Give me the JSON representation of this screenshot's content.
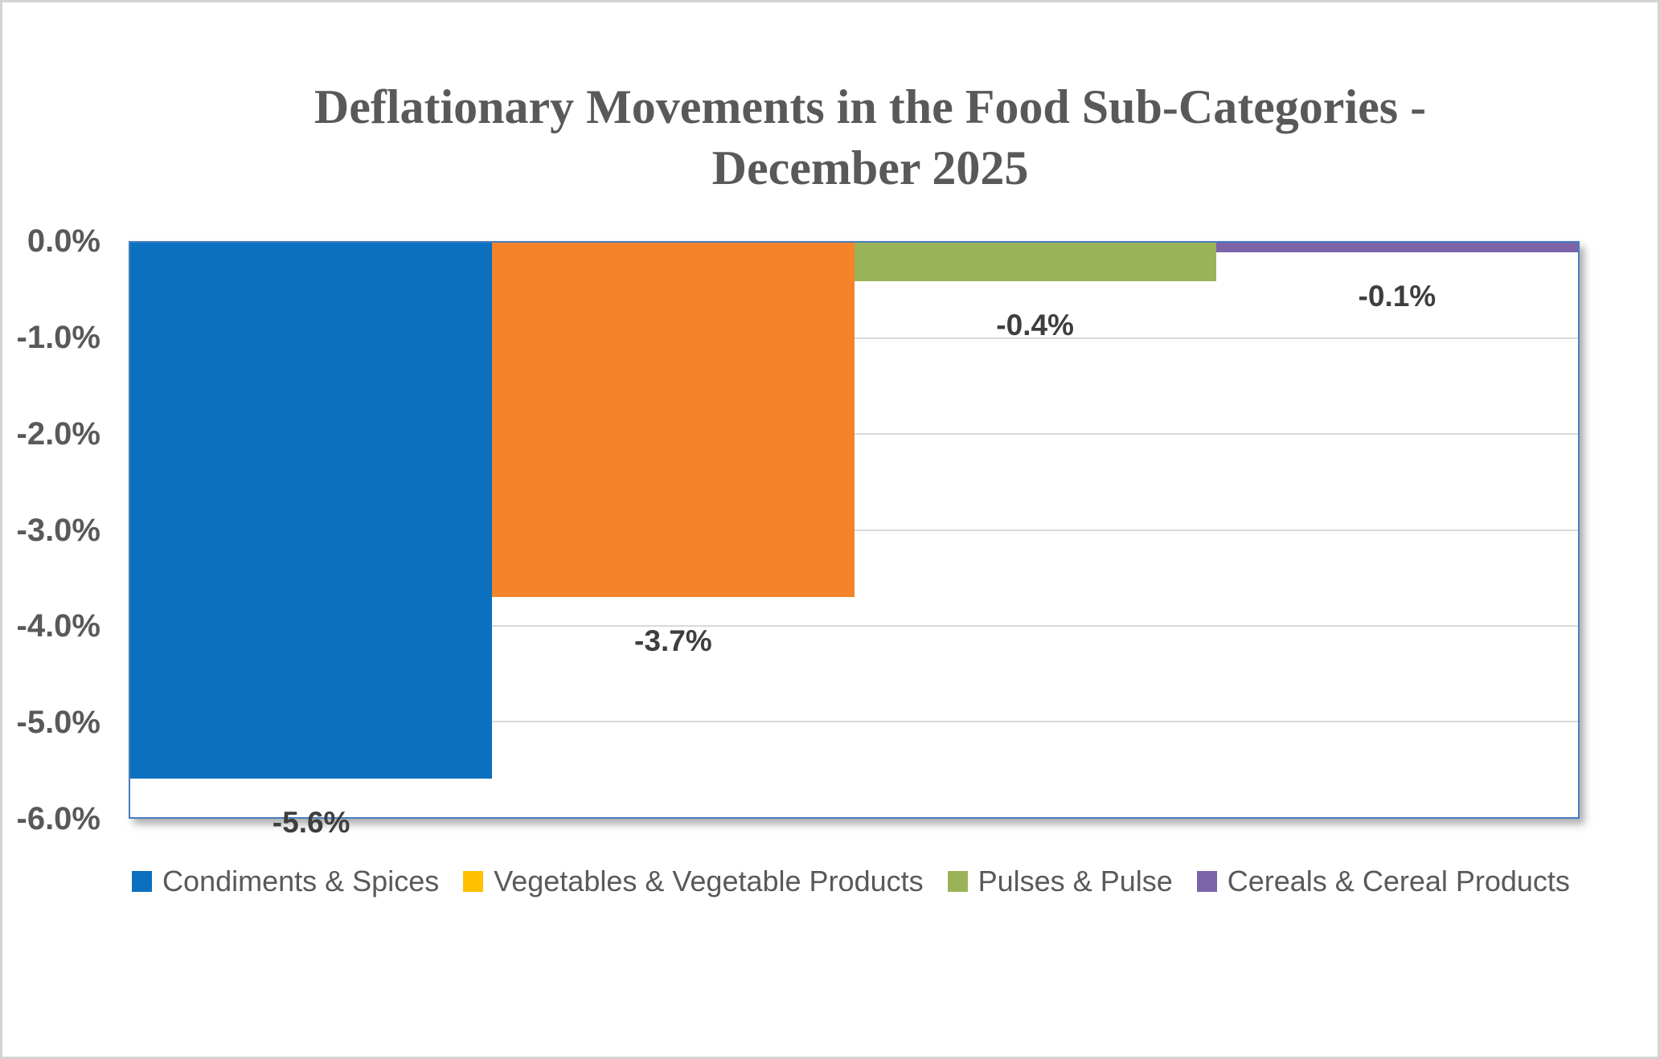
{
  "title": {
    "line1": "Deflationary Movements in the Food Sub-Categories -",
    "line2": "December 2025"
  },
  "chart_data": {
    "type": "bar",
    "title": "Deflationary Movements in the Food Sub-Categories - December 2025",
    "categories": [
      "Condiments & Spices",
      "Vegetables & Vegetable Products",
      "Pulses & Pulse",
      "Cereals & Cereal Products"
    ],
    "values": [
      -5.6,
      -3.7,
      -0.4,
      -0.1
    ],
    "data_labels": [
      "-5.6%",
      "-3.7%",
      "-0.4%",
      "-0.1%"
    ],
    "bar_colors": [
      "#0a70bf",
      "#f3842b",
      "#9ab357",
      "#7b64a8"
    ],
    "legend_marker_colors": [
      "#0a70bf",
      "#fdc101",
      "#9ab357",
      "#7b64a8"
    ],
    "ylabel": "",
    "xlabel": "",
    "ylim": [
      -6,
      0
    ],
    "yticks": [
      {
        "value": 0,
        "label": "0.0%"
      },
      {
        "value": -1,
        "label": "-1.0%"
      },
      {
        "value": -2,
        "label": "-2.0%"
      },
      {
        "value": -3,
        "label": "-3.0%"
      },
      {
        "value": -4,
        "label": "-4.0%"
      },
      {
        "value": -5,
        "label": "-5.0%"
      },
      {
        "value": -6,
        "label": "-6.0%"
      }
    ],
    "grid": true,
    "gap_width_percent": 0,
    "legend_position": "bottom",
    "accent_colors": {
      "plot_border": "#4a7dbf",
      "gridline": "#d9d9d9",
      "tick_text": "#595959",
      "data_label_text": "#3e3e3e",
      "title_text": "#595959",
      "legend_text": "#595959"
    }
  }
}
